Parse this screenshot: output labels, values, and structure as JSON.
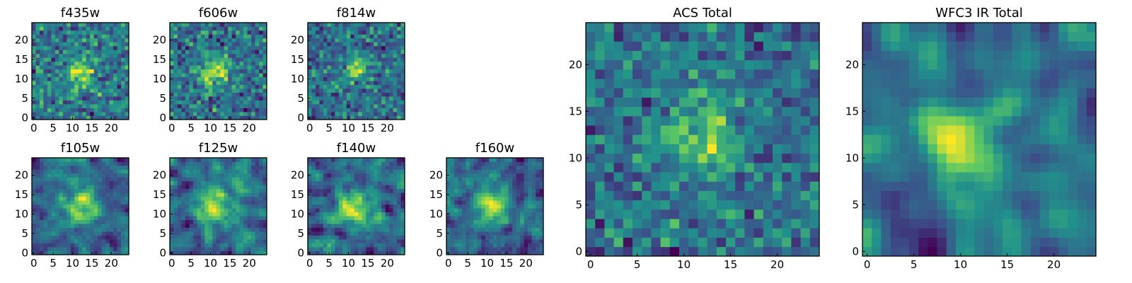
{
  "figure": {
    "colormap": [
      "#440154",
      "#3b528b",
      "#21918c",
      "#5ec962",
      "#fde725"
    ]
  },
  "chart_data": [
    {
      "type": "heatmap",
      "title": "f435w",
      "grid_size": 25,
      "xlim": [
        -0.5,
        24.5
      ],
      "ylim": [
        -0.5,
        24.5
      ],
      "xticks": [
        0,
        5,
        10,
        15,
        20
      ],
      "yticks": [
        0,
        5,
        10,
        15,
        20
      ],
      "grid": false,
      "noise_seed": 11,
      "center": [
        12,
        12
      ],
      "peak_width": 2.5,
      "smooth": 0
    },
    {
      "type": "heatmap",
      "title": "f606w",
      "grid_size": 25,
      "xlim": [
        -0.5,
        24.5
      ],
      "ylim": [
        -0.5,
        24.5
      ],
      "xticks": [
        0,
        5,
        10,
        15,
        20
      ],
      "yticks": [
        0,
        5,
        10,
        15,
        20
      ],
      "grid": false,
      "noise_seed": 23,
      "center": [
        11,
        12
      ],
      "peak_width": 2.8,
      "smooth": 0
    },
    {
      "type": "heatmap",
      "title": "f814w",
      "grid_size": 25,
      "xlim": [
        -0.5,
        24.5
      ],
      "ylim": [
        -0.5,
        24.5
      ],
      "xticks": [
        0,
        5,
        10,
        15,
        20
      ],
      "yticks": [
        0,
        5,
        10,
        15,
        20
      ],
      "grid": false,
      "noise_seed": 37,
      "center": [
        12,
        13
      ],
      "peak_width": 2.2,
      "smooth": 0
    },
    {
      "type": "heatmap",
      "title": "f105w",
      "grid_size": 25,
      "xlim": [
        -0.5,
        24.5
      ],
      "ylim": [
        -0.5,
        24.5
      ],
      "xticks": [
        0,
        5,
        10,
        15,
        20
      ],
      "yticks": [
        0,
        5,
        10,
        15,
        20
      ],
      "grid": false,
      "noise_seed": 41,
      "center": [
        12,
        12
      ],
      "peak_width": 3.0,
      "smooth": 1
    },
    {
      "type": "heatmap",
      "title": "f125w",
      "grid_size": 25,
      "xlim": [
        -0.5,
        24.5
      ],
      "ylim": [
        -0.5,
        24.5
      ],
      "xticks": [
        0,
        5,
        10,
        15,
        20
      ],
      "yticks": [
        0,
        5,
        10,
        15,
        20
      ],
      "grid": false,
      "noise_seed": 53,
      "center": [
        11,
        12
      ],
      "peak_width": 3.0,
      "smooth": 1
    },
    {
      "type": "heatmap",
      "title": "f140w",
      "grid_size": 25,
      "xlim": [
        -0.5,
        24.5
      ],
      "ylim": [
        -0.5,
        24.5
      ],
      "xticks": [
        0,
        5,
        10,
        15,
        20
      ],
      "yticks": [
        0,
        5,
        10,
        15,
        20
      ],
      "grid": false,
      "noise_seed": 67,
      "center": [
        11,
        12
      ],
      "peak_width": 3.0,
      "smooth": 1
    },
    {
      "type": "heatmap",
      "title": "f160w",
      "grid_size": 25,
      "xlim": [
        -0.5,
        24.5
      ],
      "ylim": [
        -0.5,
        24.5
      ],
      "xticks": [
        0,
        5,
        10,
        15,
        20
      ],
      "yticks": [
        0,
        5,
        10,
        15,
        20
      ],
      "grid": false,
      "noise_seed": 79,
      "center": [
        11,
        12
      ],
      "peak_width": 2.6,
      "smooth": 1
    },
    {
      "type": "heatmap",
      "title": "ACS Total",
      "grid_size": 25,
      "xlim": [
        -0.5,
        24.5
      ],
      "ylim": [
        -0.5,
        24.5
      ],
      "xticks": [
        0,
        5,
        10,
        15,
        20
      ],
      "yticks": [
        0,
        5,
        10,
        15,
        20
      ],
      "grid": false,
      "noise_seed": 97,
      "center": [
        12,
        12
      ],
      "peak_width": 2.6,
      "smooth": 0
    },
    {
      "type": "heatmap",
      "title": "WFC3 IR Total",
      "grid_size": 25,
      "xlim": [
        -0.5,
        24.5
      ],
      "ylim": [
        -0.5,
        24.5
      ],
      "xticks": [
        0,
        5,
        10,
        15,
        20
      ],
      "yticks": [
        0,
        5,
        10,
        15,
        20
      ],
      "grid": false,
      "noise_seed": 113,
      "center": [
        11,
        12
      ],
      "peak_width": 3.0,
      "smooth": 2
    }
  ]
}
